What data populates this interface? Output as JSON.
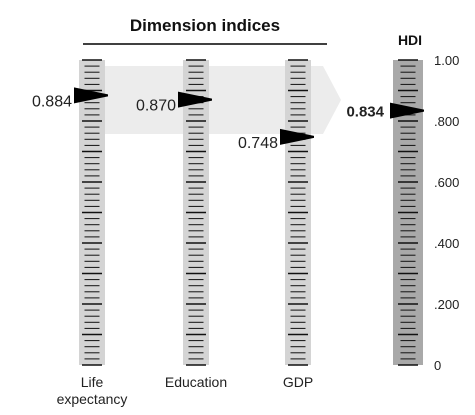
{
  "chart_data": {
    "type": "bar",
    "title": "Dimension indices",
    "hdi_title": "HDI",
    "ylim": [
      0,
      1
    ],
    "series": [
      {
        "name": "Life expectancy",
        "label_lines": [
          "Life",
          "expectancy"
        ],
        "value": 0.884,
        "value_label": "0.884"
      },
      {
        "name": "Education",
        "label_lines": [
          "Education"
        ],
        "value": 0.87,
        "value_label": "0.870"
      },
      {
        "name": "GDP",
        "label_lines": [
          "GDP"
        ],
        "value": 0.748,
        "value_label": "0.748"
      }
    ],
    "hdi": {
      "value": 0.834,
      "value_label": "0.834"
    },
    "ticks": [
      {
        "value": 1.0,
        "label": "1.00"
      },
      {
        "value": 0.8,
        "label": ".800"
      },
      {
        "value": 0.6,
        "label": ".600"
      },
      {
        "value": 0.4,
        "label": ".400"
      },
      {
        "value": 0.2,
        "label": ".200"
      },
      {
        "value": 0.0,
        "label": "0"
      }
    ],
    "colors": {
      "scale": "#d4d4d4",
      "hdi_scale": "#a9a9a9",
      "arrow": "#ececec",
      "marker": "#000000"
    }
  }
}
